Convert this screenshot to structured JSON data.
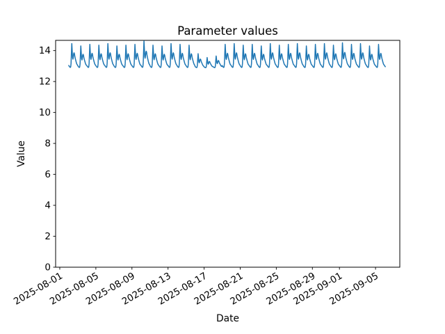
{
  "chart_data": {
    "type": "line",
    "title": "Parameter values",
    "xlabel": "Date",
    "ylabel": "Value",
    "legend": null,
    "grid": false,
    "line_color": "#1f77b4",
    "axis_color": "#000000",
    "background_color": "#ffffff",
    "ylim": [
      0,
      14.66
    ],
    "yticks": [
      0,
      2,
      4,
      6,
      8,
      10,
      12,
      14
    ],
    "x_epoch_date": "2025-08-01",
    "xlim_days_from_epoch": [
      -0.46,
      37.69
    ],
    "xticks": [
      {
        "day": 0,
        "label": "2025-08-01"
      },
      {
        "day": 4,
        "label": "2025-08-05"
      },
      {
        "day": 8,
        "label": "2025-08-09"
      },
      {
        "day": 12,
        "label": "2025-08-13"
      },
      {
        "day": 16,
        "label": "2025-08-17"
      },
      {
        "day": 20,
        "label": "2025-08-21"
      },
      {
        "day": 24,
        "label": "2025-08-25"
      },
      {
        "day": 28,
        "label": "2025-08-29"
      },
      {
        "day": 31,
        "label": "2025-09-01"
      },
      {
        "day": 35,
        "label": "2025-09-05"
      }
    ],
    "series": {
      "name": "parameter-values",
      "sampling": "hourly",
      "start_day_from_epoch": 1,
      "base_value": 12.88,
      "daily_profile": [
        0.1,
        0.07,
        0.05,
        0.03,
        0.02,
        0.04,
        0.18,
        0.62,
        1.0,
        0.72,
        0.42,
        0.36,
        0.44,
        0.58,
        0.62,
        0.58,
        0.48,
        0.4,
        0.34,
        0.28,
        0.22,
        0.17,
        0.14,
        0.12
      ],
      "days": [
        {
          "date": "2025-08-02",
          "peak": 14.45
        },
        {
          "date": "2025-08-03",
          "peak": 14.3
        },
        {
          "date": "2025-08-04",
          "peak": 14.4
        },
        {
          "date": "2025-08-05",
          "peak": 14.35
        },
        {
          "date": "2025-08-06",
          "peak": 14.45
        },
        {
          "date": "2025-08-07",
          "peak": 14.3
        },
        {
          "date": "2025-08-08",
          "peak": 14.35
        },
        {
          "date": "2025-08-09",
          "peak": 14.4
        },
        {
          "date": "2025-08-10",
          "peak": 14.62
        },
        {
          "date": "2025-08-11",
          "peak": 14.35
        },
        {
          "date": "2025-08-12",
          "peak": 14.3
        },
        {
          "date": "2025-08-13",
          "peak": 14.45
        },
        {
          "date": "2025-08-14",
          "peak": 14.4
        },
        {
          "date": "2025-08-15",
          "peak": 14.35
        },
        {
          "date": "2025-08-16",
          "peak": 13.8
        },
        {
          "date": "2025-08-17",
          "peak": 13.55
        },
        {
          "date": "2025-08-18",
          "peak": 13.65
        },
        {
          "date": "2025-08-19",
          "peak": 14.4
        },
        {
          "date": "2025-08-20",
          "peak": 14.45
        },
        {
          "date": "2025-08-21",
          "peak": 14.35
        },
        {
          "date": "2025-08-22",
          "peak": 14.4
        },
        {
          "date": "2025-08-23",
          "peak": 14.3
        },
        {
          "date": "2025-08-24",
          "peak": 14.45
        },
        {
          "date": "2025-08-25",
          "peak": 14.35
        },
        {
          "date": "2025-08-26",
          "peak": 14.4
        },
        {
          "date": "2025-08-27",
          "peak": 14.45
        },
        {
          "date": "2025-08-28",
          "peak": 14.3
        },
        {
          "date": "2025-08-29",
          "peak": 14.4
        },
        {
          "date": "2025-08-30",
          "peak": 14.45
        },
        {
          "date": "2025-08-31",
          "peak": 14.35
        },
        {
          "date": "2025-09-01",
          "peak": 14.5
        },
        {
          "date": "2025-09-02",
          "peak": 14.4
        },
        {
          "date": "2025-09-03",
          "peak": 14.45
        },
        {
          "date": "2025-09-04",
          "peak": 14.3
        },
        {
          "date": "2025-09-05",
          "peak": 14.4
        }
      ],
      "tail": {
        "date": "2025-09-06",
        "hours": 3,
        "peak": 14.4
      }
    }
  }
}
